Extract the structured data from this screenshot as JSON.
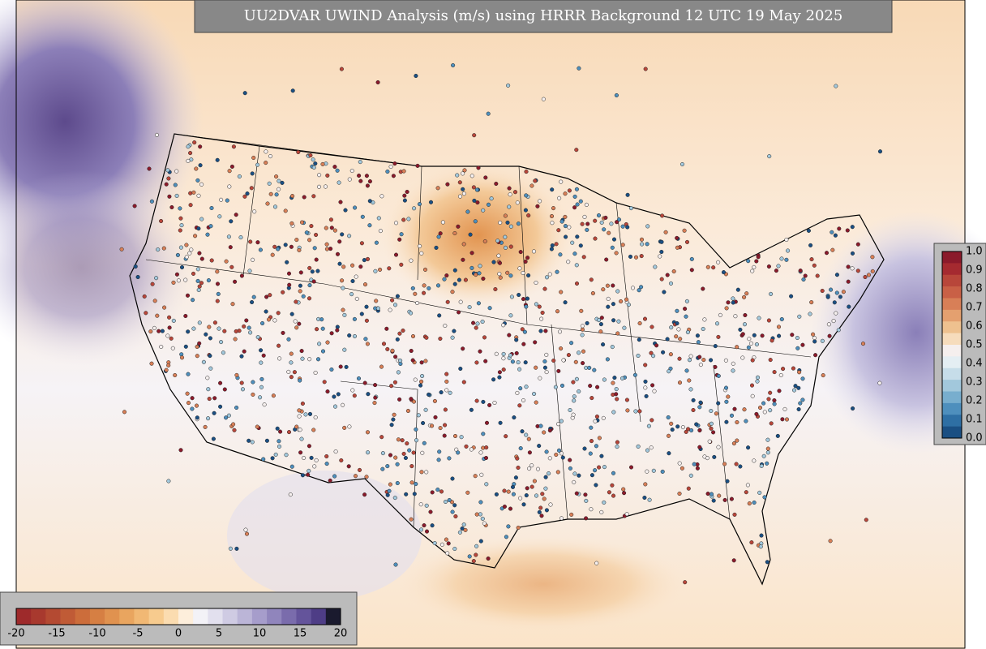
{
  "title": "UU2DVAR UWIND Analysis (m/s) using HRRR Background 12 UTC 19 May 2025",
  "colorbar_horizontal": {
    "ticks": [
      "-20",
      "-15",
      "-10",
      "-5",
      "0",
      "5",
      "10",
      "15",
      "20"
    ],
    "colors": [
      "#9e2a2b",
      "#a8392e",
      "#b44a32",
      "#c05b36",
      "#cc6d3b",
      "#d67f43",
      "#e0924f",
      "#e9a55f",
      "#f1b874",
      "#f7cb8e",
      "#fbdcb0",
      "#fdeedb",
      "#f3f2f7",
      "#e2e0ee",
      "#cfcbe3",
      "#bbb5d7",
      "#a69dcb",
      "#9085bc",
      "#7a6cac",
      "#64549b",
      "#4e3d86",
      "#1a1a2e"
    ]
  },
  "colorbar_vertical": {
    "ticks": [
      "1.0",
      "0.9",
      "0.8",
      "0.7",
      "0.6",
      "0.5",
      "0.4",
      "0.3",
      "0.2",
      "0.1",
      "0.0"
    ],
    "colors": [
      "#8b1a2b",
      "#a52a30",
      "#b8463a",
      "#c96046",
      "#d87f57",
      "#e4a06f",
      "#eec18f",
      "#f6dcbc",
      "#f5efee",
      "#e4eef3",
      "#c6dde9",
      "#a2c8dc",
      "#78aece",
      "#4e8fbd",
      "#2e6fa4",
      "#1a4f83"
    ]
  }
}
